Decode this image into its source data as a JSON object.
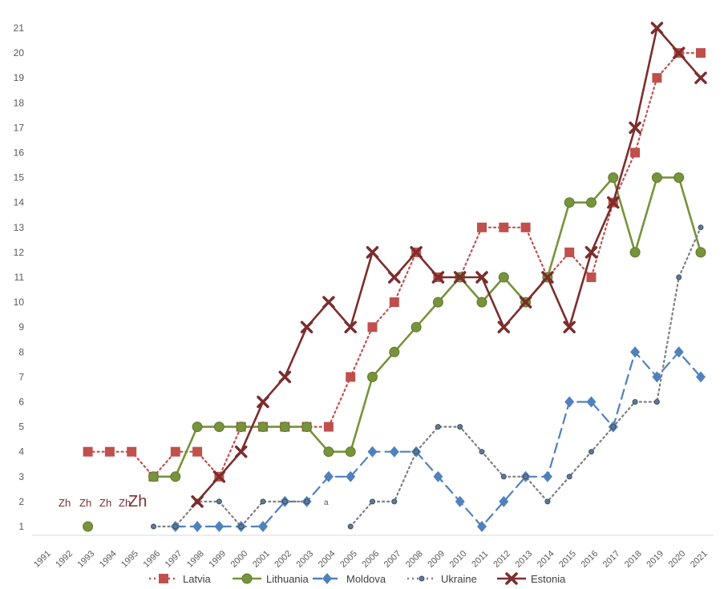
{
  "chart_data": {
    "type": "line",
    "title": "",
    "xlabel": "",
    "ylabel": "",
    "x": [
      "1991",
      "1992",
      "1993",
      "1994",
      "1995",
      "1996",
      "1997",
      "1998",
      "1999",
      "2000",
      "2001",
      "2002",
      "2003",
      "2004",
      "2005",
      "2006",
      "2007",
      "2008",
      "2009",
      "2010",
      "2011",
      "2012",
      "2013",
      "2014",
      "2015",
      "2016",
      "2017",
      "2018",
      "2019",
      "2020",
      "2021"
    ],
    "ylim": [
      1,
      21
    ],
    "yticks": [
      "1",
      "2",
      "3",
      "4",
      "5",
      "6",
      "7",
      "8",
      "9",
      "10",
      "11",
      "12",
      "13",
      "14",
      "15",
      "16",
      "17",
      "18",
      "19",
      "20",
      "21"
    ],
    "grid": false,
    "legend": "bottom",
    "series": [
      {
        "name": "Latvia",
        "color": "#c0504d",
        "line": "dotted",
        "marker": "square",
        "values": [
          null,
          null,
          4,
          4,
          4,
          3,
          4,
          4,
          3,
          5,
          5,
          5,
          5,
          5,
          7,
          9,
          10,
          12,
          11,
          11,
          13,
          13,
          13,
          11,
          12,
          11,
          14,
          16,
          19,
          20,
          20
        ]
      },
      {
        "name": "Lithuania",
        "color": "#77933c",
        "line": "solid",
        "marker": "circle",
        "values": [
          null,
          null,
          1,
          null,
          null,
          3,
          3,
          5,
          5,
          5,
          5,
          5,
          5,
          4,
          4,
          7,
          8,
          9,
          10,
          11,
          10,
          11,
          10,
          11,
          14,
          14,
          15,
          12,
          15,
          15,
          12
        ]
      },
      {
        "name": "Moldova",
        "color": "#4f81bd",
        "line": "dashed",
        "marker": "diamond",
        "values": [
          null,
          null,
          null,
          null,
          null,
          null,
          1,
          1,
          1,
          1,
          1,
          2,
          2,
          3,
          3,
          4,
          4,
          4,
          3,
          2,
          1,
          2,
          3,
          3,
          6,
          6,
          5,
          8,
          7,
          8,
          7
        ]
      },
      {
        "name": "Ukraine",
        "color": "#7f7f7f",
        "line": "dotted",
        "marker": "smallcircle",
        "values": [
          null,
          null,
          null,
          null,
          null,
          1,
          1,
          2,
          2,
          1,
          2,
          2,
          2,
          null,
          1,
          2,
          2,
          4,
          5,
          5,
          4,
          3,
          3,
          2,
          3,
          4,
          5,
          6,
          6,
          11,
          13
        ]
      },
      {
        "name": "Estonia",
        "color": "#7b2d2d",
        "line": "solid",
        "marker": "x",
        "values": [
          null,
          null,
          null,
          null,
          null,
          null,
          null,
          2,
          3,
          4,
          6,
          7,
          9,
          10,
          9,
          12,
          11,
          12,
          11,
          11,
          11,
          9,
          10,
          11,
          9,
          12,
          14,
          17,
          21,
          20,
          19
        ]
      }
    ],
    "overlay_labels": [
      "Zh",
      "Zh",
      "Zh",
      "Zh",
      "Zh"
    ],
    "stray_label": "a"
  }
}
